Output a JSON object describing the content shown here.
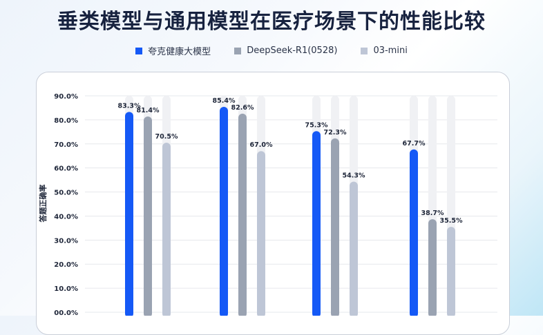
{
  "title": "垂类模型与通用模型在医疗场景下的性能比较",
  "colors": {
    "series1": "#1559f6",
    "series2": "#9aa3b2",
    "series3": "#bec6d6",
    "track": "#f0f1f4"
  },
  "chart_data": {
    "type": "bar",
    "title": "垂类模型与通用模型在医疗场景下的性能比较",
    "ylabel": "答题正确率",
    "xlabel": "",
    "ylim": [
      0,
      90
    ],
    "yticks": [
      "00.0%",
      "10.0%",
      "20.0%",
      "30.0%",
      "40.0%",
      "50.0%",
      "60.0%",
      "70.0%",
      "80.0%",
      "90.0%"
    ],
    "grid": true,
    "legend_position": "top",
    "categories": [
      "",
      "",
      "",
      ""
    ],
    "series": [
      {
        "name": "夸克健康大模型",
        "values": [
          83.3,
          85.4,
          75.3,
          67.7
        ],
        "labels": [
          "83.3%",
          "85.4%",
          "75.3%",
          "67.7%"
        ]
      },
      {
        "name": "DeepSeek-R1(0528)",
        "values": [
          81.4,
          82.6,
          72.3,
          38.7
        ],
        "labels": [
          "81.4%",
          "82.6%",
          "72.3%",
          "38.7%"
        ]
      },
      {
        "name": "03-mini",
        "values": [
          70.5,
          67.0,
          54.3,
          35.5
        ],
        "labels": [
          "70.5%",
          "67.0%",
          "54.3%",
          "35.5%"
        ]
      }
    ]
  }
}
